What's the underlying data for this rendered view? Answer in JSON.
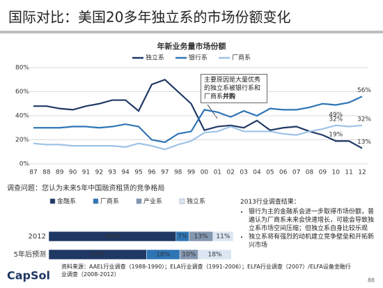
{
  "title": "国际对比：美国20多年独立系的市场份额变化",
  "annotation": {
    "text": "主要原因是大量优秀的独立系被银行系和厂商系",
    "bold": "并购"
  },
  "survey": {
    "title": "2013行业调查结果：",
    "items": [
      "银行为主的金融系会进一步取得市场份额，普遍认为厂商系未来会快速增长，可能会导致独立系市场空间压缩；但独立系自身比较乐观",
      "独立系将有强烈的动机建立竞争壁垒和开拓新兴市场"
    ]
  },
  "source": "资料来源：AAEL行业调查（1988-1990）；ELA行业调查（1991-2006）；ELFA行业调查（2007）/ELFA设备金融行业调查（2008-2012）",
  "logo": "CapSol",
  "page": "88",
  "chart_data": [
    {
      "type": "line",
      "title": "年新业务量市场份额",
      "categories": [
        "87",
        "88",
        "89",
        "90",
        "91",
        "92",
        "93",
        "94",
        "95",
        "96",
        "97",
        "98",
        "99",
        "00",
        "01",
        "02",
        "03",
        "04",
        "05",
        "06",
        "07",
        "08",
        "09",
        "10",
        "11",
        "12"
      ],
      "ylim": [
        0,
        80
      ],
      "yticks": [
        {
          "value": 0,
          "label": "0%"
        },
        {
          "value": 20,
          "label": "20%"
        },
        {
          "value": 40,
          "label": "40%"
        },
        {
          "value": 60,
          "label": "60%"
        },
        {
          "value": 80,
          "label": "80%"
        }
      ],
      "grid": true,
      "series": [
        {
          "name": "独立系",
          "color": "#1f3864",
          "values": [
            48,
            48,
            46,
            45,
            48,
            50,
            53,
            53,
            44,
            66,
            70,
            60,
            50,
            28,
            31,
            32,
            30,
            36,
            28,
            30,
            31,
            27,
            24,
            19,
            19,
            13
          ],
          "value_labels": [
            null,
            null,
            null,
            null,
            null,
            null,
            null,
            null,
            null,
            null,
            null,
            null,
            null,
            null,
            null,
            null,
            null,
            null,
            null,
            null,
            null,
            null,
            null,
            "19%",
            null,
            "13%"
          ]
        },
        {
          "name": "银行系",
          "color": "#2e75b6",
          "values": [
            30,
            30,
            30,
            31,
            31,
            30,
            31,
            33,
            31,
            20,
            18,
            25,
            27,
            45,
            43,
            39,
            44,
            40,
            46,
            45,
            45,
            47,
            50,
            49,
            51,
            56
          ],
          "value_labels": [
            null,
            null,
            null,
            null,
            null,
            null,
            null,
            null,
            null,
            null,
            null,
            null,
            null,
            null,
            null,
            null,
            null,
            null,
            null,
            null,
            null,
            null,
            null,
            "49%",
            null,
            "56%"
          ]
        },
        {
          "name": "厂商系",
          "color": "#9dc3e6",
          "values": [
            17,
            16,
            16,
            15,
            15,
            15,
            15,
            14,
            17,
            15,
            12,
            16,
            19,
            26,
            27,
            31,
            27,
            27,
            27,
            25,
            24,
            27,
            29,
            32,
            31,
            32
          ],
          "value_labels": [
            null,
            null,
            null,
            null,
            null,
            null,
            null,
            null,
            null,
            null,
            null,
            null,
            null,
            null,
            null,
            null,
            null,
            null,
            null,
            null,
            null,
            null,
            null,
            "32%",
            null,
            "32%"
          ]
        }
      ]
    },
    {
      "type": "stacked-barh",
      "title": "调查问题：您认为未来5年中国融资租赁的竞争格局",
      "categories": [
        "2012",
        "5年后预测"
      ],
      "xlim": [
        0,
        100
      ],
      "series": [
        {
          "name": "金融系",
          "color": "#1f3864",
          "values": [
            69,
            53
          ],
          "value_labels": [
            "69%",
            "53%"
          ]
        },
        {
          "name": "厂商系",
          "color": "#2e75b6",
          "values": [
            7,
            18
          ],
          "value_labels": [
            "7%",
            "18%"
          ]
        },
        {
          "name": "产业系",
          "color": "#8497b0",
          "values": [
            13,
            10
          ],
          "value_labels": [
            "13%",
            "10%"
          ]
        },
        {
          "name": "独立系",
          "color": "#dce6f2",
          "values": [
            11,
            18
          ],
          "value_labels": [
            "11%",
            "18%"
          ]
        }
      ]
    }
  ]
}
